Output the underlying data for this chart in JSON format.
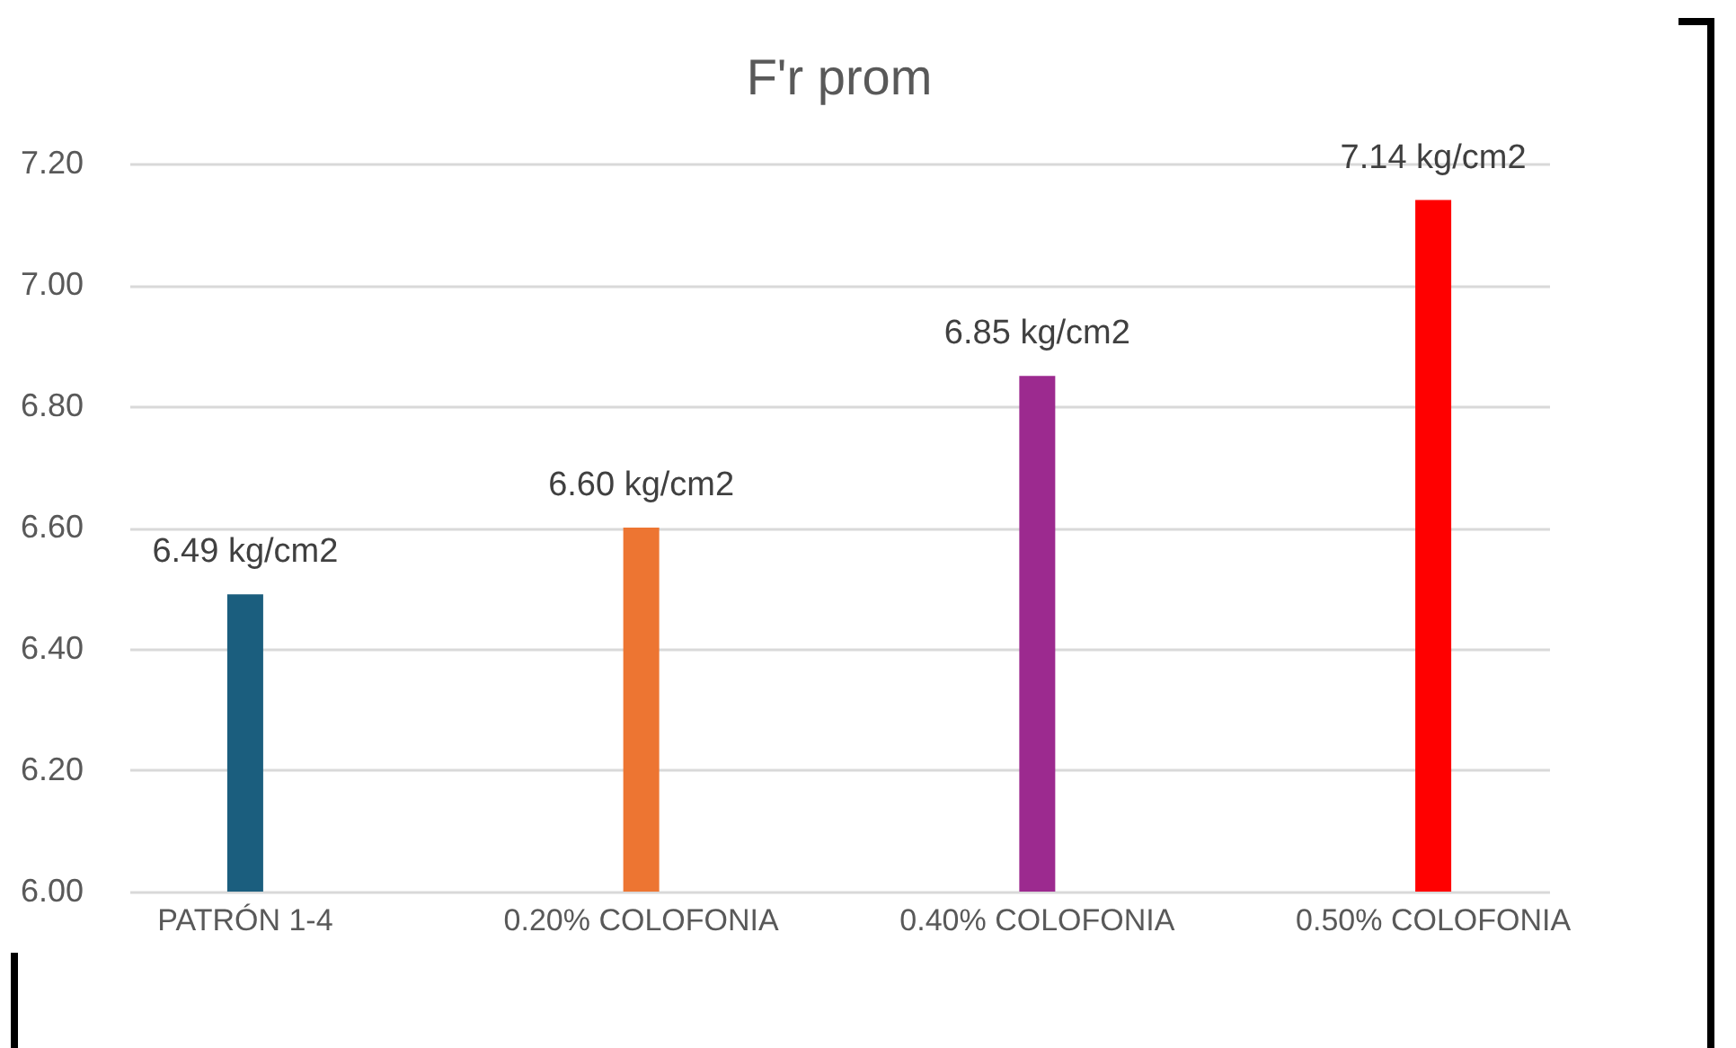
{
  "chart_data": {
    "type": "bar",
    "title": "F'r prom",
    "categories": [
      "PATRÓN 1-4",
      "0.20% COLOFONIA",
      "0.40% COLOFONIA",
      "0.50% COLOFONIA"
    ],
    "values": [
      6.49,
      6.6,
      6.85,
      7.14
    ],
    "colors": [
      "#1b5e7e",
      "#ed7532",
      "#9c2a8f",
      "#ff0000"
    ],
    "value_labels": [
      "6.49 kg/cm2",
      "6.60 kg/cm2",
      "6.85 kg/cm2",
      "7.14 kg/cm2"
    ],
    "ylim": [
      6.0,
      7.2
    ],
    "yticks": [
      {
        "value": 6.0,
        "label": "6.00"
      },
      {
        "value": 6.2,
        "label": "6.20"
      },
      {
        "value": 6.4,
        "label": "6.40"
      },
      {
        "value": 6.6,
        "label": "6.60"
      },
      {
        "value": 6.8,
        "label": "6.80"
      },
      {
        "value": 7.0,
        "label": "7.00"
      },
      {
        "value": 7.2,
        "label": "7.20"
      }
    ],
    "grid": "y"
  }
}
